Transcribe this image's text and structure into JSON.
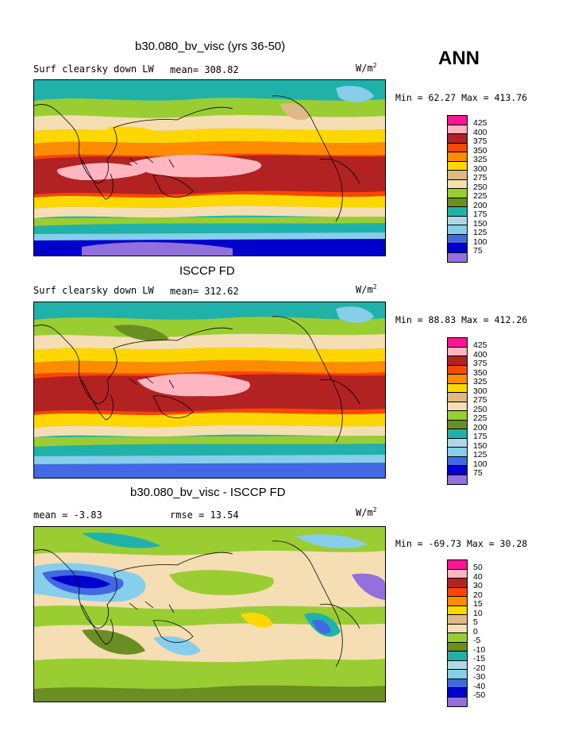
{
  "season": "ANN",
  "colors": [
    "#ff1493",
    "#ffb6c1",
    "#b22222",
    "#ff4500",
    "#ff8c00",
    "#ffd700",
    "#deb887",
    "#f5deb3",
    "#9acd32",
    "#6b8e23",
    "#20b2aa",
    "#add8e6",
    "#87ceeb",
    "#4169e1",
    "#0000cd",
    "#9370db"
  ],
  "panels": [
    {
      "title": "b30.080_bv_visc (yrs 36-50)",
      "left": "Surf clearsky down LW",
      "mid": "mean= 308.82",
      "units": "W/m",
      "units_sup": "2",
      "minmax": "Min =   62.27 Max = 413.76",
      "levels": [
        "425",
        "400",
        "375",
        "350",
        "325",
        "300",
        "275",
        "250",
        "225",
        "200",
        "175",
        "150",
        "125",
        "100",
        "75"
      ]
    },
    {
      "title": "ISCCP FD",
      "left": "Surf clearsky down LW",
      "mid": "mean= 312.62",
      "units": "W/m",
      "units_sup": "2",
      "minmax": "Min =   88.83 Max = 412.26",
      "levels": [
        "425",
        "400",
        "375",
        "350",
        "325",
        "300",
        "275",
        "250",
        "225",
        "200",
        "175",
        "150",
        "125",
        "100",
        "75"
      ]
    },
    {
      "title": "b30.080_bv_visc - ISCCP FD",
      "left": "mean =   -3.83",
      "mid": "rmse =   13.54",
      "units": "W/m",
      "units_sup": "2",
      "minmax": "Min = -69.73 Max =   30.28",
      "levels": [
        "50",
        "40",
        "30",
        "20",
        "15",
        "10",
        "5",
        "0",
        "-5",
        "-10",
        "-15",
        "-20",
        "-30",
        "-40",
        "-50"
      ]
    }
  ]
}
